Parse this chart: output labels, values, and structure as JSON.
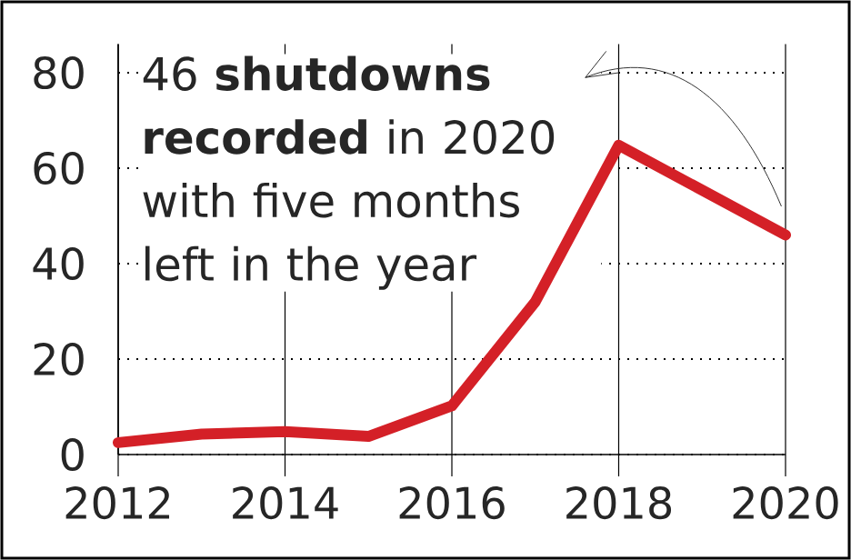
{
  "chart_data": {
    "type": "line",
    "x": [
      2012,
      2013,
      2014,
      2015,
      2016,
      2017,
      2018,
      2020
    ],
    "series": [
      {
        "color": "#d42027",
        "values": [
          2.5,
          4.3,
          4.8,
          3.8,
          10.2,
          32,
          64.8,
          46
        ]
      }
    ],
    "xlim": [
      2012,
      2020
    ],
    "xticks": [
      2012,
      2014,
      2016,
      2018,
      2020
    ],
    "ylim": [
      0,
      86
    ],
    "yticks": [
      0,
      20,
      40,
      60,
      80
    ],
    "grid": true,
    "marker": "none",
    "line_style": "solid",
    "annotations": [
      "46 **shutdowns recorded** in 2020 with five months left in the year"
    ]
  }
}
